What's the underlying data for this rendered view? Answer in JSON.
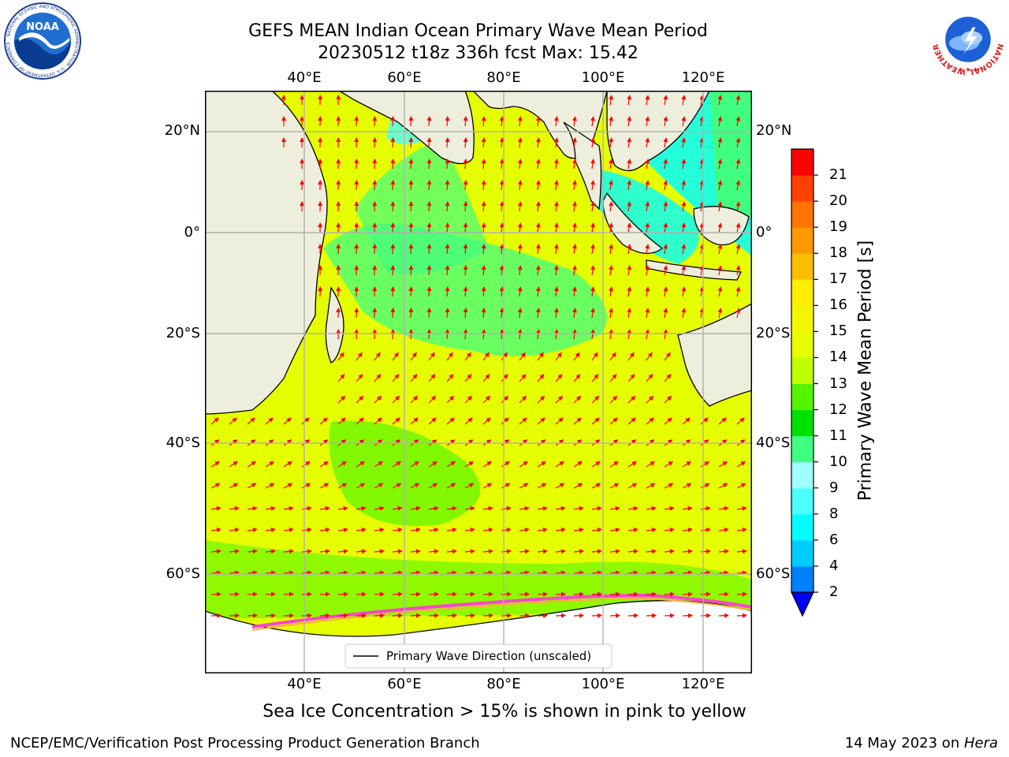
{
  "title": {
    "line1": "GEFS MEAN Indian Ocean Primary Wave Mean Period",
    "line2": "20230512 t18z 336h fcst   Max: 15.42"
  },
  "axes": {
    "lon_labels": [
      "40°E",
      "60°E",
      "80°E",
      "100°E",
      "120°E"
    ],
    "lon_values": [
      40,
      60,
      80,
      100,
      120
    ],
    "lat_labels": [
      "20°N",
      "0°",
      "20°S",
      "40°S",
      "60°S"
    ],
    "lat_values": [
      20,
      0,
      -20,
      -40,
      -60
    ],
    "lon_range": [
      20,
      130
    ],
    "lat_range": [
      -74,
      28
    ],
    "projection": "Mercator",
    "grid": true
  },
  "legend": {
    "label": "Primary Wave Direction (unscaled)",
    "placement": "bottom-center"
  },
  "colorbar": {
    "title": "Primary Wave Mean Period [s]",
    "tick_labels": [
      "2",
      "4",
      "6",
      "8",
      "9",
      "10",
      "11",
      "12",
      "13",
      "14",
      "15",
      "16",
      "17",
      "18",
      "19",
      "20",
      "21"
    ],
    "bounds": [
      2,
      4,
      6,
      8,
      9,
      10,
      11,
      12,
      13,
      14,
      15,
      16,
      17,
      18,
      19,
      20,
      21
    ],
    "colors": [
      "#0080ff",
      "#00ccff",
      "#00ffff",
      "#4dffff",
      "#a0ffff",
      "#40ff80",
      "#00e000",
      "#55f500",
      "#bfff00",
      "#e6ff00",
      "#f5f500",
      "#ffee00",
      "#ffbf00",
      "#ff9900",
      "#ff7300",
      "#ff4000",
      "#ff0000"
    ],
    "under_color": "#0000ff",
    "extend": "min"
  },
  "caption": "Sea Ice Concentration > 15% is shown in pink to yellow",
  "footer": {
    "left": "NCEP/EMC/Verification Post Processing Product Generation Branch",
    "date": "14 May 2023 on ",
    "machine": "Hera"
  },
  "logos": {
    "left_text": "NOAA",
    "left_ring_text": "NATIONAL OCEANIC AND ATMOSPHERIC ADMINISTRATION · U.S. DEPARTMENT OF COMMERCE",
    "right_ring_text": "NATIONAL WEATHER SERVICE"
  },
  "colors": {
    "land": "#eeeedd",
    "ocean_dominant": "#e6ff00",
    "arrows": "#ff0000",
    "sea_ice": "#ffffff",
    "grid": "#b0b0b0"
  }
}
